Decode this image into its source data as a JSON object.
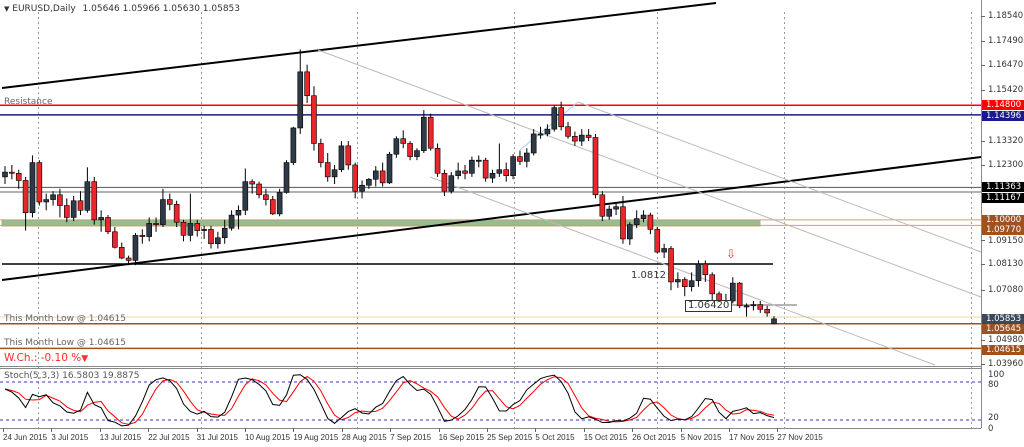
{
  "header": {
    "symbol_label": "EURUSD,Daily",
    "ohlc_label": "1.05646 1.05966 1.05630 1.05853"
  },
  "annotations": {
    "resistance": "Resistance",
    "month_low_1": "This Month Low @ 1.04615",
    "month_low_2": "This Month Low @ 1.04615",
    "weekly_change": "W.Ch.: -0.10 %",
    "weekly_change_arrow": "▼",
    "level_1": "1.0812",
    "level_2": "1.06420",
    "down_arrow": "⇩"
  },
  "indicator": {
    "label": "Stoch(5,3,3) 16.5803 19.8875",
    "axis": [
      "100",
      "80",
      "20",
      "0"
    ]
  },
  "colors": {
    "bull": "#2f3a48",
    "bear": "#e8262c",
    "resistance": "#ff0000",
    "navy": "#1a1a8c",
    "brown": "#a0521e",
    "zone": "#8fc08f",
    "stoch_main": "#000000",
    "stoch_signal": "#ff0000"
  },
  "chart_data": {
    "type": "candlestick",
    "symbol": "EURUSD",
    "timeframe": "Daily",
    "ylim": [
      1.0396,
      1.1854
    ],
    "y_ticks": [
      "1.18540",
      "1.17490",
      "1.16470",
      "1.15420",
      "1.13320",
      "1.12300",
      "1.09150",
      "1.08130",
      "1.07080",
      "1.04980",
      "1.03960"
    ],
    "x_ticks": [
      "24 Jun 2015",
      "3 Jul 2015",
      "13 Jul 2015",
      "22 Jul 2015",
      "31 Jul 2015",
      "10 Aug 2015",
      "19 Aug 2015",
      "28 Aug 2015",
      "7 Sep 2015",
      "16 Sep 2015",
      "25 Sep 2015",
      "5 Oct 2015",
      "15 Oct 2015",
      "26 Oct 2015",
      "5 Nov 2015",
      "17 Nov 2015",
      "27 Nov 2015"
    ],
    "price_badges": [
      {
        "value": "1.14800",
        "color": "#ff0000"
      },
      {
        "value": "1.14396",
        "color": "#1a1a8c"
      },
      {
        "value": "1.11363",
        "color": "#000000"
      },
      {
        "value": "1.11167",
        "color": "#000000"
      },
      {
        "value": "1.10000",
        "color": "#a0521e"
      },
      {
        "value": "1.09770",
        "color": "#a0521e"
      },
      {
        "value": "1.05853",
        "color": "#3a4a5a"
      },
      {
        "value": "1.05645",
        "color": "#a0521e"
      },
      {
        "value": "1.04615",
        "color": "#a0521e"
      }
    ],
    "ohlc": [
      [
        1.118,
        1.1225,
        1.115,
        1.12
      ],
      [
        1.12,
        1.123,
        1.117,
        1.1195
      ],
      [
        1.1195,
        1.121,
        1.113,
        1.1165
      ],
      [
        1.1165,
        1.118,
        1.0955,
        1.103
      ],
      [
        1.103,
        1.127,
        1.101,
        1.124
      ],
      [
        1.124,
        1.125,
        1.106,
        1.1075
      ],
      [
        1.1075,
        1.111,
        1.104,
        1.1085
      ],
      [
        1.1085,
        1.112,
        1.106,
        1.1105
      ],
      [
        1.1105,
        1.113,
        1.101,
        1.106
      ],
      [
        1.106,
        1.109,
        1.099,
        1.101
      ],
      [
        1.101,
        1.11,
        1.0995,
        1.108
      ],
      [
        1.108,
        1.112,
        1.102,
        1.104
      ],
      [
        1.104,
        1.122,
        1.103,
        1.116
      ],
      [
        1.116,
        1.118,
        1.098,
        1.1
      ],
      [
        1.1,
        1.104,
        1.095,
        1.101
      ],
      [
        1.101,
        1.102,
        1.094,
        1.095
      ],
      [
        1.095,
        1.097,
        1.088,
        1.0885
      ],
      [
        1.0885,
        1.0905,
        1.0835,
        1.084
      ],
      [
        1.084,
        1.085,
        1.081,
        1.083
      ],
      [
        1.083,
        1.0945,
        1.081,
        1.0935
      ],
      [
        1.0935,
        1.096,
        1.09,
        1.093
      ],
      [
        1.093,
        1.101,
        1.091,
        1.0985
      ],
      [
        1.0985,
        1.101,
        1.095,
        1.098
      ],
      [
        1.098,
        1.113,
        1.097,
        1.1085
      ],
      [
        1.1085,
        1.111,
        1.104,
        1.1065
      ],
      [
        1.1065,
        1.108,
        1.097,
        1.099
      ],
      [
        1.099,
        1.1,
        1.091,
        1.0935
      ],
      [
        1.0935,
        1.111,
        1.091,
        1.0985
      ],
      [
        1.0985,
        1.1,
        1.093,
        1.0955
      ],
      [
        1.0955,
        1.0975,
        1.092,
        1.096
      ],
      [
        1.096,
        1.0975,
        1.088,
        1.09
      ],
      [
        1.09,
        1.095,
        1.088,
        1.0925
      ],
      [
        1.0925,
        1.1,
        1.09,
        1.0965
      ],
      [
        1.0965,
        1.104,
        1.0955,
        1.102
      ],
      [
        1.102,
        1.106,
        1.096,
        1.104
      ],
      [
        1.104,
        1.1215,
        1.102,
        1.116
      ],
      [
        1.116,
        1.117,
        1.111,
        1.115
      ],
      [
        1.115,
        1.116,
        1.109,
        1.1105
      ],
      [
        1.1105,
        1.113,
        1.106,
        1.1085
      ],
      [
        1.1085,
        1.11,
        1.102,
        1.1025
      ],
      [
        1.1025,
        1.113,
        1.1015,
        1.1115
      ],
      [
        1.1115,
        1.125,
        1.111,
        1.124
      ],
      [
        1.124,
        1.139,
        1.123,
        1.1385
      ],
      [
        1.1385,
        1.1714,
        1.136,
        1.162
      ],
      [
        1.162,
        1.165,
        1.149,
        1.152
      ],
      [
        1.152,
        1.156,
        1.129,
        1.132
      ],
      [
        1.132,
        1.134,
        1.122,
        1.124
      ],
      [
        1.124,
        1.128,
        1.116,
        1.118
      ],
      [
        1.118,
        1.123,
        1.115,
        1.121
      ],
      [
        1.121,
        1.133,
        1.12,
        1.131
      ],
      [
        1.131,
        1.133,
        1.121,
        1.123
      ],
      [
        1.123,
        1.124,
        1.109,
        1.112
      ],
      [
        1.112,
        1.1165,
        1.109,
        1.1145
      ],
      [
        1.1145,
        1.1175,
        1.113,
        1.117
      ],
      [
        1.117,
        1.1225,
        1.114,
        1.1205
      ],
      [
        1.1205,
        1.124,
        1.114,
        1.1155
      ],
      [
        1.1155,
        1.1285,
        1.115,
        1.1275
      ],
      [
        1.1275,
        1.135,
        1.126,
        1.134
      ],
      [
        1.134,
        1.1375,
        1.13,
        1.132
      ],
      [
        1.132,
        1.133,
        1.125,
        1.1265
      ],
      [
        1.1265,
        1.13,
        1.125,
        1.129
      ],
      [
        1.129,
        1.146,
        1.128,
        1.143
      ],
      [
        1.143,
        1.1445,
        1.129,
        1.13
      ],
      [
        1.13,
        1.132,
        1.118,
        1.1195
      ],
      [
        1.1195,
        1.121,
        1.11,
        1.112
      ],
      [
        1.112,
        1.12,
        1.111,
        1.1185
      ],
      [
        1.1185,
        1.124,
        1.117,
        1.1205
      ],
      [
        1.1205,
        1.123,
        1.117,
        1.1195
      ],
      [
        1.1195,
        1.1265,
        1.118,
        1.125
      ],
      [
        1.125,
        1.127,
        1.122,
        1.125
      ],
      [
        1.125,
        1.126,
        1.116,
        1.1175
      ],
      [
        1.1175,
        1.121,
        1.1155,
        1.1195
      ],
      [
        1.1195,
        1.132,
        1.118,
        1.121
      ],
      [
        1.121,
        1.124,
        1.116,
        1.1185
      ],
      [
        1.1185,
        1.1275,
        1.117,
        1.1265
      ],
      [
        1.1265,
        1.129,
        1.123,
        1.1245
      ],
      [
        1.1245,
        1.13,
        1.122,
        1.128
      ],
      [
        1.128,
        1.138,
        1.127,
        1.136
      ],
      [
        1.136,
        1.139,
        1.134,
        1.136
      ],
      [
        1.136,
        1.14,
        1.135,
        1.138
      ],
      [
        1.138,
        1.148,
        1.137,
        1.147
      ],
      [
        1.147,
        1.1495,
        1.1375,
        1.139
      ],
      [
        1.139,
        1.141,
        1.134,
        1.135
      ],
      [
        1.135,
        1.137,
        1.131,
        1.133
      ],
      [
        1.133,
        1.138,
        1.131,
        1.1355
      ],
      [
        1.1355,
        1.138,
        1.133,
        1.1345
      ],
      [
        1.1345,
        1.136,
        1.109,
        1.1105
      ],
      [
        1.1105,
        1.112,
        1.0995,
        1.1015
      ],
      [
        1.1015,
        1.106,
        1.1,
        1.1045
      ],
      [
        1.1045,
        1.107,
        1.102,
        1.1055
      ],
      [
        1.1055,
        1.11,
        1.09,
        1.092
      ],
      [
        1.092,
        1.099,
        1.0895,
        1.098
      ],
      [
        1.098,
        1.104,
        1.0965,
        1.1005
      ],
      [
        1.1005,
        1.104,
        1.099,
        1.102
      ],
      [
        1.102,
        1.103,
        1.094,
        1.096
      ],
      [
        1.096,
        1.097,
        1.086,
        1.0865
      ],
      [
        1.0865,
        1.09,
        1.084,
        1.088
      ],
      [
        1.088,
        1.089,
        1.0705,
        1.074
      ],
      [
        1.074,
        1.078,
        1.0715,
        1.075
      ],
      [
        1.075,
        1.076,
        1.068,
        1.072
      ],
      [
        1.072,
        1.078,
        1.07,
        1.0745
      ],
      [
        1.0745,
        1.083,
        1.072,
        1.0815
      ],
      [
        1.0815,
        1.083,
        1.074,
        1.077
      ],
      [
        1.077,
        1.078,
        1.066,
        1.069
      ],
      [
        1.069,
        1.07,
        1.063,
        1.0645
      ],
      [
        1.0645,
        1.069,
        1.062,
        1.066
      ],
      [
        1.066,
        1.076,
        1.065,
        1.0735
      ],
      [
        1.0735,
        1.074,
        1.063,
        1.064
      ],
      [
        1.064,
        1.065,
        1.0595,
        1.064
      ],
      [
        1.064,
        1.066,
        1.062,
        1.0645
      ],
      [
        1.0645,
        1.066,
        1.061,
        1.0625
      ],
      [
        1.0625,
        1.064,
        1.0595,
        1.061
      ],
      [
        1.05646,
        1.05966,
        1.0563,
        1.05853
      ]
    ],
    "horizontal_levels": [
      1.148,
      1.14396,
      1.11363,
      1.11167,
      1.1,
      1.0977,
      1.0812,
      1.0642,
      1.0593,
      1.05645,
      1.04615
    ],
    "stochastic": {
      "k": 5,
      "d": 3,
      "slowing": 3,
      "levels": [
        20,
        80
      ],
      "ylim": [
        0,
        100
      ]
    }
  }
}
